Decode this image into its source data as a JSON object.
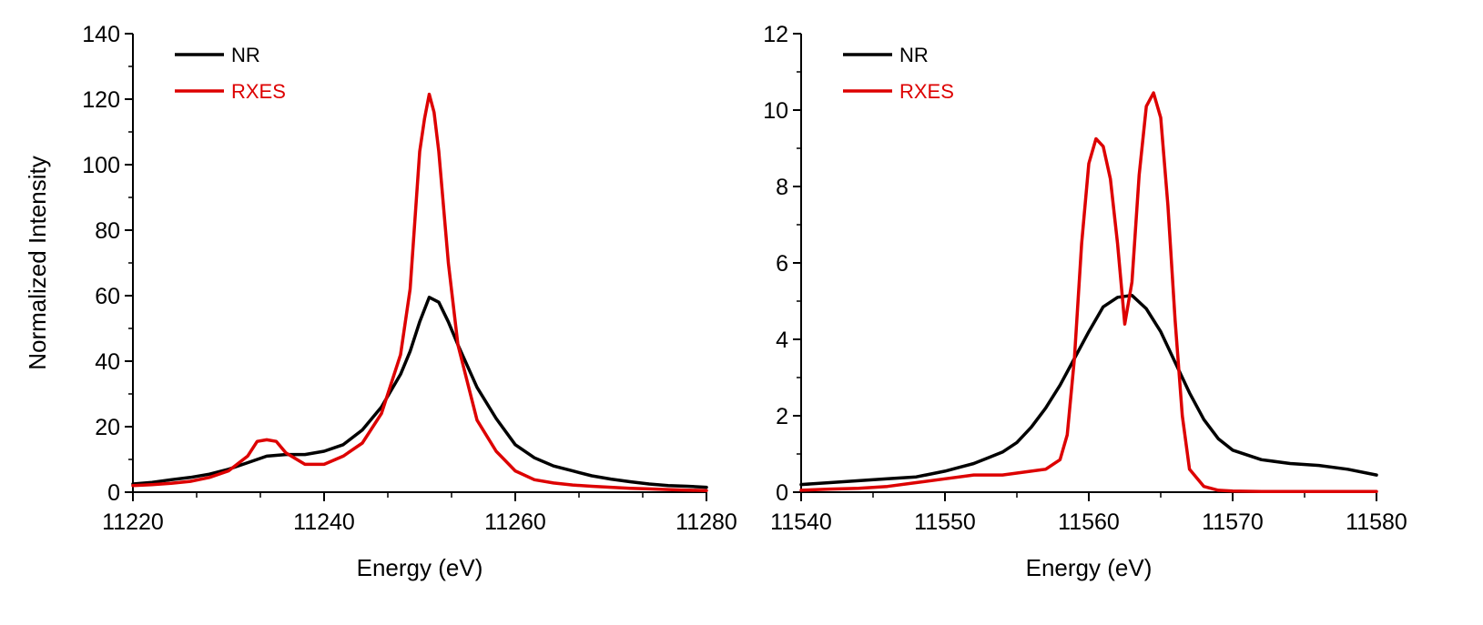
{
  "chart_data": [
    {
      "type": "line",
      "xlabel": "Energy (eV)",
      "ylabel": "Normalized Intensity",
      "xlim": [
        11220,
        11280
      ],
      "ylim": [
        0,
        140
      ],
      "xticks": [
        11220,
        11240,
        11260,
        11280
      ],
      "yticks": [
        0,
        20,
        40,
        60,
        80,
        100,
        120,
        140
      ],
      "legend_position": "top-left",
      "series": [
        {
          "name": "NR",
          "color": "#000000",
          "x": [
            11220,
            11222,
            11224,
            11226,
            11228,
            11230,
            11232,
            11234,
            11236,
            11238,
            11240,
            11242,
            11244,
            11246,
            11248,
            11249,
            11250,
            11251,
            11252,
            11253,
            11254,
            11256,
            11258,
            11260,
            11262,
            11264,
            11266,
            11268,
            11270,
            11272,
            11274,
            11276,
            11278,
            11280
          ],
          "y": [
            2.5,
            3,
            3.8,
            4.5,
            5.5,
            7,
            9,
            11,
            11.5,
            11.5,
            12.5,
            14.5,
            19,
            26,
            36,
            43,
            52,
            59.5,
            58,
            52,
            45,
            32,
            22.5,
            14.5,
            10.5,
            8,
            6.5,
            5,
            4,
            3.2,
            2.5,
            2,
            1.8,
            1.5
          ]
        },
        {
          "name": "RXES",
          "color": "#dd0000",
          "x": [
            11220,
            11222,
            11224,
            11226,
            11228,
            11230,
            11232,
            11233,
            11234,
            11235,
            11236,
            11238,
            11240,
            11242,
            11244,
            11246,
            11248,
            11249,
            11250,
            11250.5,
            11251,
            11251.5,
            11252,
            11253,
            11254,
            11256,
            11258,
            11260,
            11262,
            11264,
            11266,
            11268,
            11270,
            11272,
            11274,
            11276,
            11278,
            11280
          ],
          "y": [
            2,
            2.3,
            2.7,
            3.3,
            4.5,
            6.5,
            11,
            15.5,
            16,
            15.5,
            12,
            8.5,
            8.5,
            11,
            15,
            24,
            42,
            62,
            104,
            114,
            121.5,
            116,
            104,
            70,
            45,
            22,
            12.5,
            6.5,
            3.8,
            2.8,
            2.2,
            1.8,
            1.5,
            1.2,
            1,
            0.8,
            0.6,
            0.5
          ]
        }
      ]
    },
    {
      "type": "line",
      "xlabel": "Energy (eV)",
      "ylabel": "",
      "xlim": [
        11540,
        11580
      ],
      "ylim": [
        0,
        12
      ],
      "xticks": [
        11540,
        11550,
        11560,
        11570,
        11580
      ],
      "yticks": [
        0,
        2,
        4,
        6,
        8,
        10,
        12
      ],
      "legend_position": "top-left",
      "series": [
        {
          "name": "NR",
          "color": "#000000",
          "x": [
            11540,
            11542,
            11544,
            11546,
            11548,
            11550,
            11551,
            11552,
            11553,
            11554,
            11555,
            11556,
            11557,
            11558,
            11559,
            11560,
            11561,
            11562,
            11563,
            11564,
            11565,
            11566,
            11567,
            11568,
            11569,
            11570,
            11572,
            11574,
            11576,
            11578,
            11580
          ],
          "y": [
            0.2,
            0.25,
            0.3,
            0.35,
            0.4,
            0.55,
            0.65,
            0.75,
            0.9,
            1.05,
            1.3,
            1.7,
            2.2,
            2.8,
            3.5,
            4.2,
            4.85,
            5.1,
            5.15,
            4.8,
            4.2,
            3.4,
            2.6,
            1.9,
            1.4,
            1.1,
            0.85,
            0.75,
            0.7,
            0.6,
            0.45
          ]
        },
        {
          "name": "RXES",
          "color": "#dd0000",
          "x": [
            11540,
            11542,
            11544,
            11546,
            11548,
            11550,
            11552,
            11554,
            11556,
            11557,
            11558,
            11558.5,
            11559,
            11559.5,
            11560,
            11560.5,
            11561,
            11561.5,
            11562,
            11562.5,
            11563,
            11563.5,
            11564,
            11564.5,
            11565,
            11565.5,
            11566,
            11566.5,
            11567,
            11568,
            11569,
            11570,
            11572,
            11574,
            11576,
            11578,
            11580
          ],
          "y": [
            0.05,
            0.08,
            0.1,
            0.15,
            0.25,
            0.35,
            0.45,
            0.45,
            0.55,
            0.6,
            0.85,
            1.5,
            3.5,
            6.5,
            8.6,
            9.25,
            9.05,
            8.2,
            6.5,
            4.4,
            5.5,
            8.3,
            10.1,
            10.45,
            9.8,
            7.5,
            4.5,
            2.0,
            0.6,
            0.15,
            0.05,
            0.03,
            0.02,
            0.02,
            0.02,
            0.02,
            0.02
          ]
        }
      ]
    }
  ]
}
